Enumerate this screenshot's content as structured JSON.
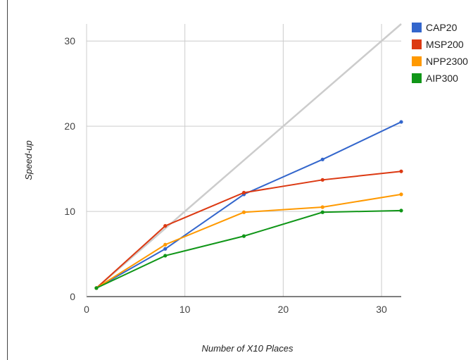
{
  "chart_data": {
    "type": "line",
    "xlabel": "Number of X10 Places",
    "ylabel": "Speed-up",
    "xlim": [
      0,
      32
    ],
    "ylim": [
      0,
      32
    ],
    "xticks": [
      "0",
      "10",
      "20",
      "30"
    ],
    "yticks": [
      "0",
      "10",
      "20",
      "30"
    ],
    "grid": true,
    "legend": "right",
    "ideal_line": {
      "x": [
        1,
        32
      ],
      "y": [
        1,
        32
      ],
      "color": "#cccccc"
    },
    "series": [
      {
        "name": "CAP20",
        "color": "#3366cc",
        "x": [
          1,
          8,
          16,
          24,
          32
        ],
        "y": [
          1,
          5.6,
          12.0,
          16.1,
          20.5
        ]
      },
      {
        "name": "MSP200",
        "color": "#dc3912",
        "x": [
          1,
          8,
          16,
          24,
          32
        ],
        "y": [
          1,
          8.3,
          12.2,
          13.7,
          14.7
        ]
      },
      {
        "name": "NPP2300",
        "color": "#ff9900",
        "x": [
          1,
          8,
          16,
          24,
          32
        ],
        "y": [
          1,
          6.1,
          9.9,
          10.5,
          12.0
        ]
      },
      {
        "name": "AIP300",
        "color": "#109618",
        "x": [
          1,
          8,
          16,
          24,
          32
        ],
        "y": [
          1,
          4.8,
          7.1,
          9.9,
          10.1
        ]
      }
    ]
  }
}
